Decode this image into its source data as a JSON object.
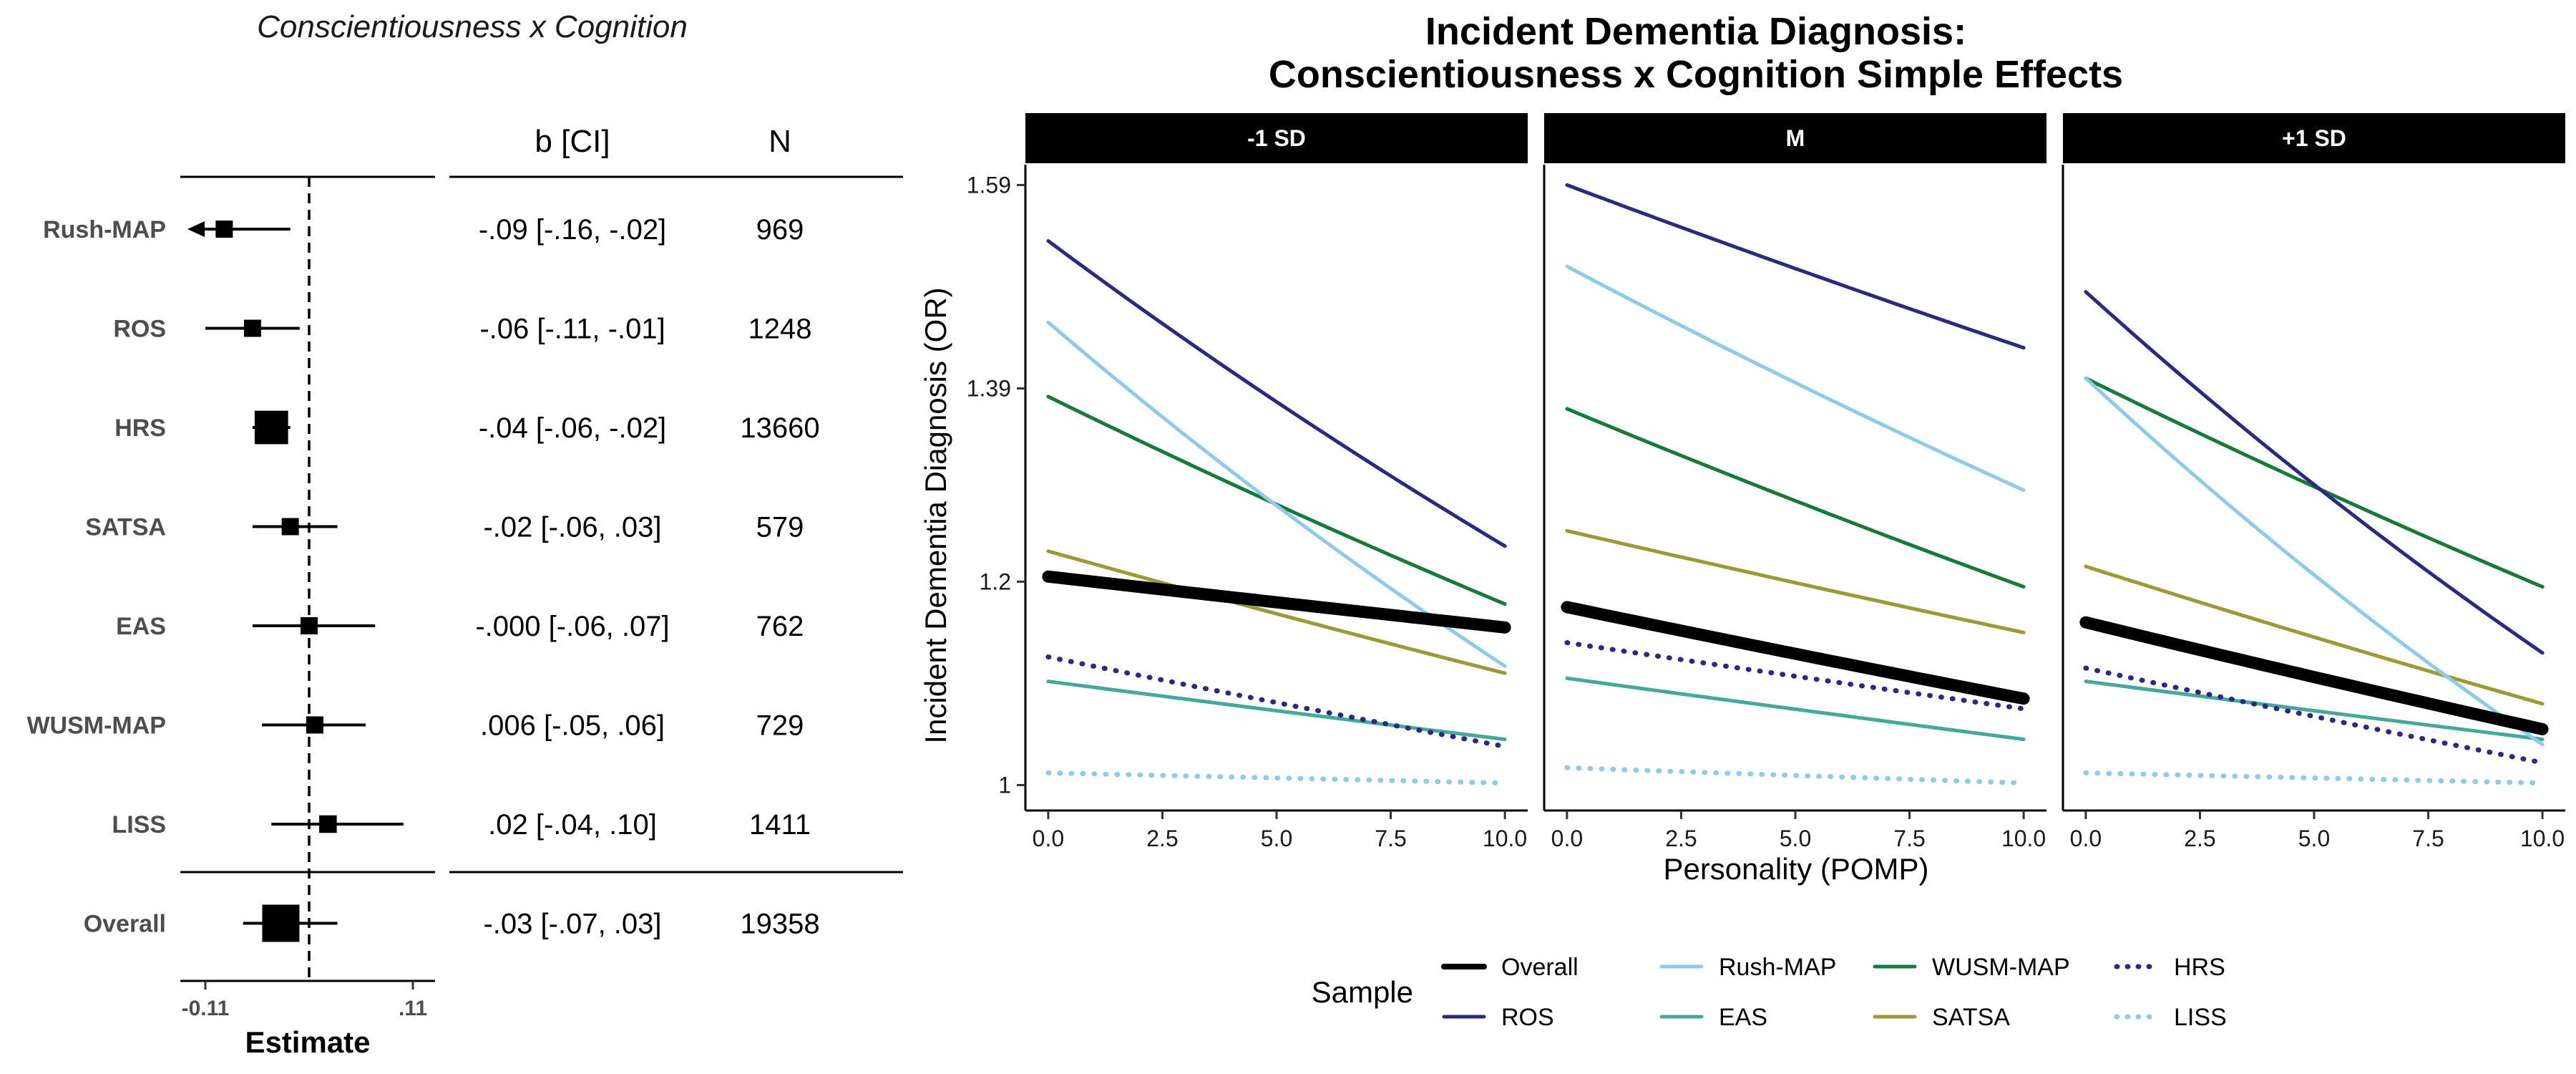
{
  "forest": {
    "title": "Conscientiousness x Cognition",
    "col_b": "b [CI]",
    "col_n": "N",
    "xlabel": "Estimate",
    "xticks": [
      "-0.11",
      ".11"
    ],
    "rows": [
      {
        "label": "Rush-MAP",
        "est": -0.09,
        "lo": -0.16,
        "hi": -0.02,
        "text": "-.09 [-.16, -.02]",
        "n": "969",
        "arrow_left": true
      },
      {
        "label": "ROS",
        "est": -0.06,
        "lo": -0.11,
        "hi": -0.01,
        "text": "-.06 [-.11, -.01]",
        "n": "1248"
      },
      {
        "label": "HRS",
        "est": -0.04,
        "lo": -0.06,
        "hi": -0.02,
        "text": "-.04 [-.06, -.02]",
        "n": "13660"
      },
      {
        "label": "SATSA",
        "est": -0.02,
        "lo": -0.06,
        "hi": 0.03,
        "text": "-.02 [-.06, .03]",
        "n": "579"
      },
      {
        "label": "EAS",
        "est": 0.0,
        "lo": -0.06,
        "hi": 0.07,
        "text": "-.000 [-.06, .07]",
        "n": "762"
      },
      {
        "label": "WUSM-MAP",
        "est": 0.006,
        "lo": -0.05,
        "hi": 0.06,
        "text": ".006 [-.05, .06]",
        "n": "729"
      },
      {
        "label": "LISS",
        "est": 0.02,
        "lo": -0.04,
        "hi": 0.1,
        "text": ".02 [-.04, .10]",
        "n": "1411"
      },
      {
        "label": "Overall",
        "est": -0.03,
        "lo": -0.07,
        "hi": 0.03,
        "text": "-.03 [-.07, .03]",
        "n": "19358",
        "overall": true
      }
    ]
  },
  "chart_data": {
    "type": "line",
    "title": "Incident Dementia Diagnosis:",
    "subtitle": "Conscientiousness x Cognition Simple Effects",
    "xlabel": "Personality (POMP)",
    "ylabel": "Incident Dementia Diagnosis (OR)",
    "x": [
      0,
      10
    ],
    "xlim": [
      -0.5,
      10.5
    ],
    "xticks": [
      "0.0",
      "2.5",
      "5.0",
      "7.5",
      "10.0"
    ],
    "ylim": [
      0.975,
      1.61
    ],
    "yticks": [
      "1",
      "1.2",
      "1.39",
      "1.59"
    ],
    "ytick_values": [
      1.0,
      1.2,
      1.39,
      1.59
    ],
    "legend_title": "Sample",
    "legend_position": "bottom",
    "colors": {
      "Overall": "#000000",
      "ROS": "#2c2a7e",
      "Rush-MAP": "#8fcbe8",
      "EAS": "#44a89a",
      "WUSM-MAP": "#177a3c",
      "SATSA": "#9c9a35",
      "HRS": "#2c2a7e",
      "LISS": "#8fcbe8"
    },
    "panels": [
      {
        "label": "-1 SD",
        "series": [
          {
            "name": "Overall",
            "start": 1.205,
            "end": 1.155
          },
          {
            "name": "ROS",
            "start": 1.535,
            "end": 1.235
          },
          {
            "name": "Rush-MAP",
            "start": 1.455,
            "end": 1.117
          },
          {
            "name": "EAS",
            "start": 1.102,
            "end": 1.045
          },
          {
            "name": "WUSM-MAP",
            "start": 1.382,
            "end": 1.178
          },
          {
            "name": "SATSA",
            "start": 1.23,
            "end": 1.11
          },
          {
            "name": "HRS",
            "start": 1.126,
            "end": 1.038
          },
          {
            "name": "LISS",
            "start": 1.012,
            "end": 1.002
          }
        ]
      },
      {
        "label": "M",
        "series": [
          {
            "name": "Overall",
            "start": 1.175,
            "end": 1.085
          },
          {
            "name": "ROS",
            "start": 1.59,
            "end": 1.43
          },
          {
            "name": "Rush-MAP",
            "start": 1.51,
            "end": 1.29
          },
          {
            "name": "EAS",
            "start": 1.105,
            "end": 1.045
          },
          {
            "name": "WUSM-MAP",
            "start": 1.37,
            "end": 1.195
          },
          {
            "name": "SATSA",
            "start": 1.25,
            "end": 1.15
          },
          {
            "name": "HRS",
            "start": 1.14,
            "end": 1.075
          },
          {
            "name": "LISS",
            "start": 1.017,
            "end": 1.002
          }
        ]
      },
      {
        "label": "+1 SD",
        "series": [
          {
            "name": "Overall",
            "start": 1.16,
            "end": 1.055
          },
          {
            "name": "ROS",
            "start": 1.485,
            "end": 1.13
          },
          {
            "name": "Rush-MAP",
            "start": 1.4,
            "end": 1.04
          },
          {
            "name": "EAS",
            "start": 1.102,
            "end": 1.045
          },
          {
            "name": "WUSM-MAP",
            "start": 1.4,
            "end": 1.195
          },
          {
            "name": "SATSA",
            "start": 1.215,
            "end": 1.08
          },
          {
            "name": "HRS",
            "start": 1.115,
            "end": 1.022
          },
          {
            "name": "LISS",
            "start": 1.012,
            "end": 1.002
          }
        ]
      }
    ],
    "legend": [
      {
        "name": "Overall",
        "style": "solid",
        "thick": true
      },
      {
        "name": "Rush-MAP",
        "style": "solid"
      },
      {
        "name": "WUSM-MAP",
        "style": "solid"
      },
      {
        "name": "HRS",
        "style": "dotted"
      },
      {
        "name": "ROS",
        "style": "solid"
      },
      {
        "name": "EAS",
        "style": "solid"
      },
      {
        "name": "SATSA",
        "style": "solid"
      },
      {
        "name": "LISS",
        "style": "dotted"
      }
    ]
  }
}
